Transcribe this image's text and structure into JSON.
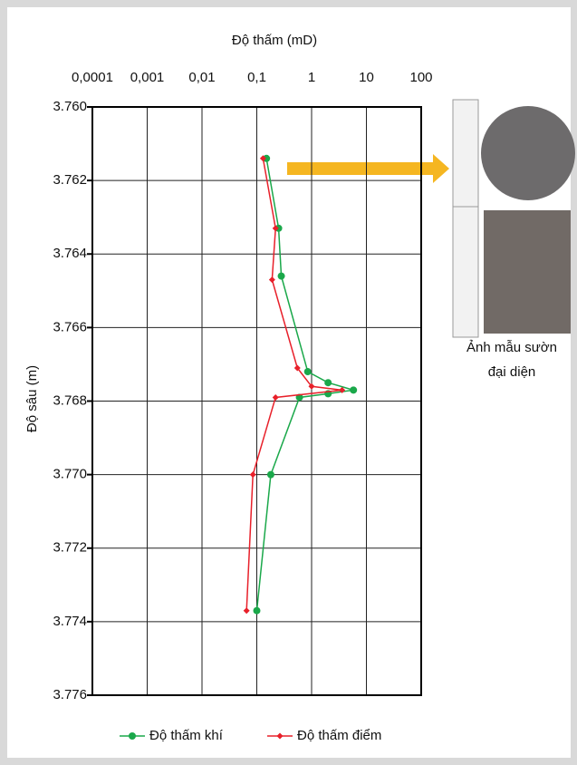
{
  "chart_data": {
    "type": "line",
    "title": "Độ thấm (mD)",
    "y_label": "Độ sâu (m)",
    "annotations": [
      "Ảnh mẫu sườn",
      "đại diện"
    ],
    "xscale": "log",
    "xlim": [
      0.0001,
      100
    ],
    "xticks": [
      {
        "value": 0.0001,
        "label": "0,0001"
      },
      {
        "value": 0.001,
        "label": "0,001"
      },
      {
        "value": 0.01,
        "label": "0,01"
      },
      {
        "value": 0.1,
        "label": "0,1"
      },
      1,
      10,
      100
    ],
    "ylim": [
      3.76,
      3.776
    ],
    "y_inverted": true,
    "yticks": [
      {
        "value": 3.76,
        "label": "3.760"
      },
      {
        "value": 3.762,
        "label": "3.762"
      },
      {
        "value": 3.764,
        "label": "3.764"
      },
      {
        "value": 3.766,
        "label": "3.766"
      },
      {
        "value": 3.768,
        "label": "3.768"
      },
      {
        "value": 3.77,
        "label": "3.770"
      },
      {
        "value": 3.772,
        "label": "3.772"
      },
      {
        "value": 3.774,
        "label": "3.774"
      },
      {
        "value": 3.776,
        "label": "3.776"
      }
    ],
    "grid": true,
    "legend": "bottom",
    "series": [
      {
        "name": "Độ thấm khí",
        "color": "#1aa84a",
        "marker": "circle",
        "x": [
          0.15,
          0.25,
          0.28,
          0.85,
          2.0,
          5.8,
          2.0,
          0.6,
          0.18,
          0.1
        ],
        "y": [
          3.7614,
          3.7633,
          3.7646,
          3.7672,
          3.7675,
          3.7677,
          3.7678,
          3.7679,
          3.77,
          3.7737
        ]
      },
      {
        "name": "Độ thấm điểm",
        "color": "#e8202a",
        "marker": "diamond",
        "x": [
          0.13,
          0.22,
          0.19,
          0.55,
          1.0,
          3.6,
          0.22,
          0.085,
          0.065
        ],
        "y": [
          3.7614,
          3.7633,
          3.7647,
          3.7671,
          3.7676,
          3.7677,
          3.7679,
          3.77,
          3.7737
        ]
      }
    ]
  }
}
